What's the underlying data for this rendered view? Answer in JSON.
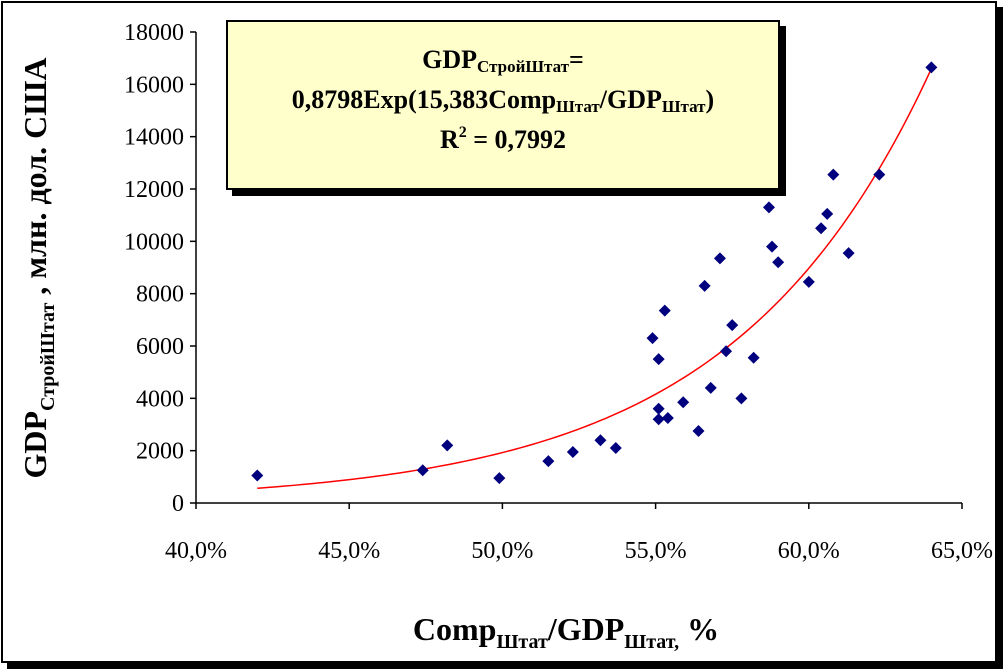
{
  "chart_data": {
    "type": "scatter",
    "y_tick_labels": [
      "0",
      "2000",
      "4000",
      "6000",
      "8000",
      "10000",
      "12000",
      "14000",
      "16000",
      "18000"
    ],
    "x_tick_labels": [
      "40,0%",
      "45,0%",
      "50,0%",
      "55,0%",
      "60,0%",
      "65,0%"
    ],
    "xlim": [
      0.4,
      0.65
    ],
    "ylim": [
      0,
      18000
    ],
    "xlabel": {
      "main": "Comp",
      "sub1": "Штат",
      "mid": "/GDP",
      "sub2": "Штат,",
      "end": " %"
    },
    "ylabel": {
      "main": "GDP",
      "sub": "СтройШтат",
      "end": " , млн. дол. США"
    },
    "points": [
      {
        "x": 0.42,
        "y": 1050
      },
      {
        "x": 0.474,
        "y": 1250
      },
      {
        "x": 0.482,
        "y": 2200
      },
      {
        "x": 0.499,
        "y": 950
      },
      {
        "x": 0.515,
        "y": 1600
      },
      {
        "x": 0.523,
        "y": 1950
      },
      {
        "x": 0.532,
        "y": 2400
      },
      {
        "x": 0.537,
        "y": 2100
      },
      {
        "x": 0.549,
        "y": 6300
      },
      {
        "x": 0.551,
        "y": 5500
      },
      {
        "x": 0.551,
        "y": 3600
      },
      {
        "x": 0.551,
        "y": 3200
      },
      {
        "x": 0.553,
        "y": 7350
      },
      {
        "x": 0.554,
        "y": 3250
      },
      {
        "x": 0.559,
        "y": 3850
      },
      {
        "x": 0.564,
        "y": 2750
      },
      {
        "x": 0.566,
        "y": 8300
      },
      {
        "x": 0.568,
        "y": 4400
      },
      {
        "x": 0.571,
        "y": 9350
      },
      {
        "x": 0.573,
        "y": 5800
      },
      {
        "x": 0.575,
        "y": 6800
      },
      {
        "x": 0.578,
        "y": 4000
      },
      {
        "x": 0.582,
        "y": 5550
      },
      {
        "x": 0.587,
        "y": 11300
      },
      {
        "x": 0.588,
        "y": 9800
      },
      {
        "x": 0.59,
        "y": 9200
      },
      {
        "x": 0.6,
        "y": 8450
      },
      {
        "x": 0.604,
        "y": 10500
      },
      {
        "x": 0.606,
        "y": 11050
      },
      {
        "x": 0.608,
        "y": 12550
      },
      {
        "x": 0.613,
        "y": 9550
      },
      {
        "x": 0.623,
        "y": 12550
      },
      {
        "x": 0.64,
        "y": 16650
      }
    ],
    "trendline": {
      "type": "exponential",
      "a": 0.8798,
      "b": 15.383,
      "x_from": 0.42,
      "x_to": 0.64
    },
    "annotation": {
      "line1_main": "GDP",
      "line1_sub": "СтройШтат",
      "line1_end": "=",
      "line2_start": "0,8798Exp(15,383Comp",
      "line2_sub1": "Штат",
      "line2_mid": "/GDP",
      "line2_sub2": "Штат",
      "line2_end": ")",
      "line3_start": "R",
      "line3_sup": "2",
      "line3_end": " = 0,7992"
    },
    "colors": {
      "points": "#00007f",
      "trendline": "#ff0000",
      "axis": "#000000",
      "box_fill": "#ffffcc"
    }
  }
}
